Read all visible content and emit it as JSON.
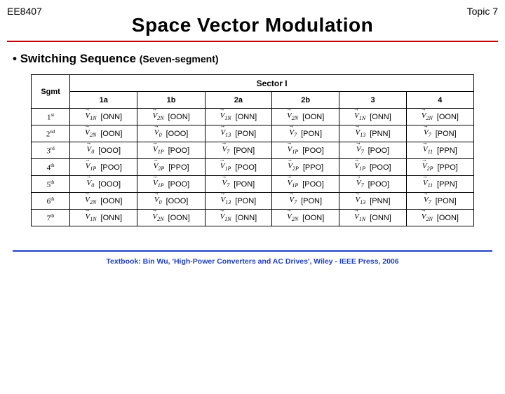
{
  "header": {
    "course": "EE8407",
    "topic": "Topic 7"
  },
  "title": "Space Vector Modulation",
  "bullet": {
    "prefix": "• ",
    "main": "Switching Sequence ",
    "sub": "(Seven-segment)"
  },
  "sector_label": "Sector I",
  "sgmt_label": "Sgmt",
  "col_heads": [
    "1a",
    "1b",
    "2a",
    "2b",
    "3",
    "4"
  ],
  "row_heads": [
    {
      "n": "1",
      "suf": "st"
    },
    {
      "n": "2",
      "suf": "nd"
    },
    {
      "n": "3",
      "suf": "rd"
    },
    {
      "n": "4",
      "suf": "th"
    },
    {
      "n": "5",
      "suf": "th"
    },
    {
      "n": "6",
      "suf": "th"
    },
    {
      "n": "7",
      "suf": "th"
    }
  ],
  "rows": [
    [
      [
        "V",
        "1N",
        "[ONN]"
      ],
      [
        "V",
        "2N",
        "[OON]"
      ],
      [
        "V",
        "1N",
        "[ONN]"
      ],
      [
        "V",
        "2N",
        "[OON]"
      ],
      [
        "V",
        "1N",
        "[ONN]"
      ],
      [
        "V",
        "2N",
        "[OON]"
      ]
    ],
    [
      [
        "V",
        "2N",
        "[OON]"
      ],
      [
        "V",
        "0",
        "[OOO]"
      ],
      [
        "V",
        "13",
        "[PON]"
      ],
      [
        "V",
        "7",
        "[PON]"
      ],
      [
        "V",
        "13",
        "[PNN]"
      ],
      [
        "V",
        "7",
        "[PON]"
      ]
    ],
    [
      [
        "V",
        "0",
        "[OOO]"
      ],
      [
        "V",
        "1P",
        "[POO]"
      ],
      [
        "V",
        "7",
        "[PON]"
      ],
      [
        "V",
        "1P",
        "[POO]"
      ],
      [
        "V",
        "7",
        "[POO]"
      ],
      [
        "V",
        "11",
        "[PPN]"
      ]
    ],
    [
      [
        "V",
        "1P",
        "[POO]"
      ],
      [
        "V",
        "2P",
        "[PPO]"
      ],
      [
        "V",
        "1P",
        "[POO]"
      ],
      [
        "V",
        "2P",
        "[PPO]"
      ],
      [
        "V",
        "1P",
        "[POO]"
      ],
      [
        "V",
        "2P",
        "[PPO]"
      ]
    ],
    [
      [
        "V",
        "0",
        "[OOO]"
      ],
      [
        "V",
        "1P",
        "[POO]"
      ],
      [
        "V",
        "7",
        "[PON]"
      ],
      [
        "V",
        "1P",
        "[POO]"
      ],
      [
        "V",
        "7",
        "[POO]"
      ],
      [
        "V",
        "11",
        "[PPN]"
      ]
    ],
    [
      [
        "V",
        "2N",
        "[OON]"
      ],
      [
        "V",
        "0",
        "[OOO]"
      ],
      [
        "V",
        "13",
        "[PON]"
      ],
      [
        "V",
        "7",
        "[PON]"
      ],
      [
        "V",
        "13",
        "[PNN]"
      ],
      [
        "V",
        "7",
        "[PON]"
      ]
    ],
    [
      [
        "V",
        "1N",
        "[ONN]"
      ],
      [
        "V",
        "2N",
        "[OON]"
      ],
      [
        "V",
        "1N",
        "[ONN]"
      ],
      [
        "V",
        "2N",
        "[OON]"
      ],
      [
        "V",
        "1N",
        "[ONN]"
      ],
      [
        "V",
        "2N",
        "[OON]"
      ]
    ]
  ],
  "footer": "Textbook: Bin Wu, 'High-Power Converters and AC Drives', Wiley - IEEE Press, 2006"
}
